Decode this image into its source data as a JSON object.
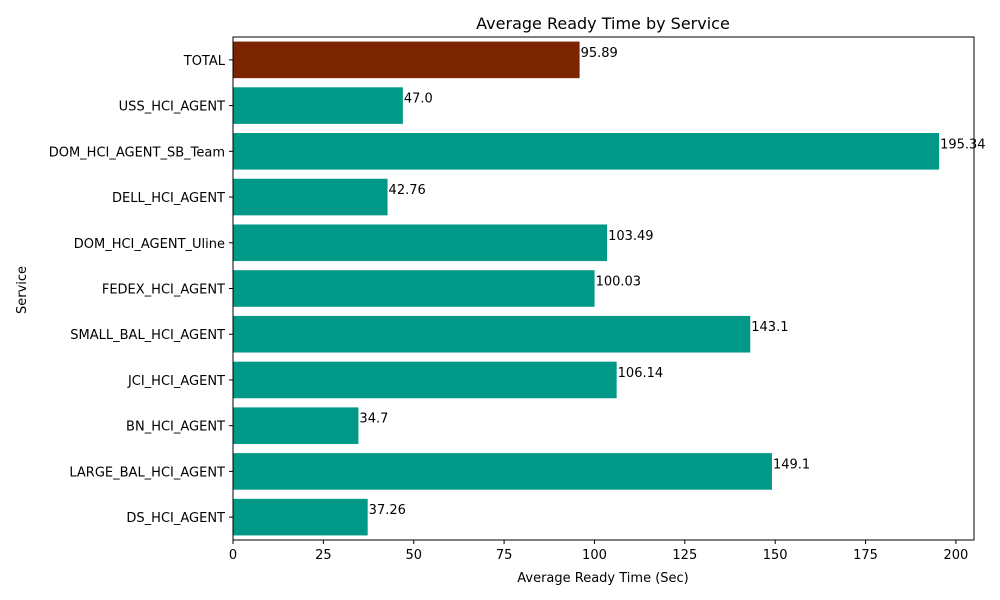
{
  "chart_data": {
    "type": "bar",
    "orientation": "horizontal",
    "title": "Average Ready Time by Service",
    "xlabel": "Average Ready Time (Sec)",
    "ylabel": "Service",
    "xlim": [
      0,
      205
    ],
    "xticks": [
      0,
      25,
      50,
      75,
      100,
      125,
      150,
      175,
      200
    ],
    "xtick_labels": [
      "0",
      "25",
      "50",
      "75",
      "100",
      "125",
      "150",
      "175",
      "200"
    ],
    "grid": false,
    "categories": [
      "DS_HCI_AGENT",
      "LARGE_BAL_HCI_AGENT",
      "BN_HCI_AGENT",
      "JCI_HCI_AGENT",
      "SMALL_BAL_HCI_AGENT",
      "FEDEX_HCI_AGENT",
      "DOM_HCI_AGENT_Uline",
      "DELL_HCI_AGENT",
      "DOM_HCI_AGENT_SB_Team",
      "USS_HCI_AGENT",
      "TOTAL"
    ],
    "values": [
      37.26,
      149.1,
      34.7,
      106.14,
      143.1,
      100.03,
      103.49,
      42.76,
      195.34,
      47.0,
      95.89
    ],
    "value_labels": [
      "37.26",
      "149.1",
      "34.7",
      "106.14",
      "143.1",
      "100.03",
      "103.49",
      "42.76",
      "195.34",
      "47.0",
      "95.89"
    ],
    "colors": {
      "default": "#009988",
      "highlight": "#7B2400"
    },
    "highlight_category": "TOTAL"
  }
}
